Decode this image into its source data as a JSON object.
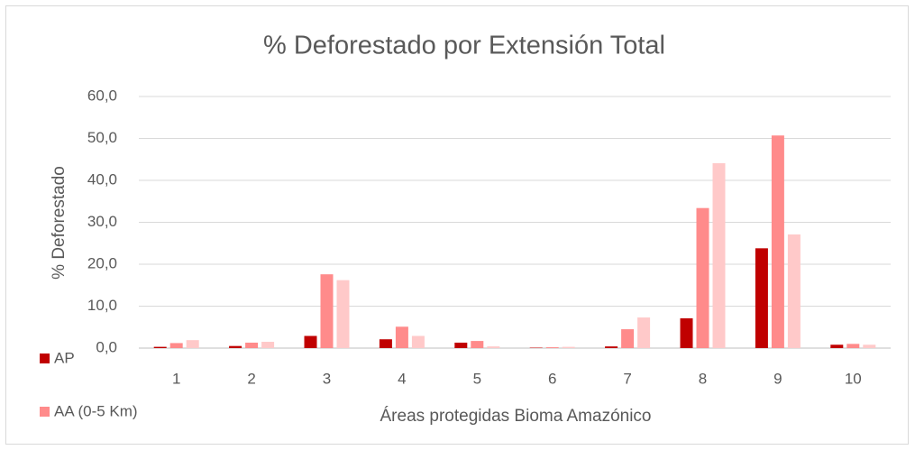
{
  "chart_data": {
    "type": "bar",
    "title": "% Deforestado por Extensión Total",
    "x_label": "Áreas protegidas Bioma Amazónico",
    "y_label": "% Deforestado",
    "categories": [
      "1",
      "2",
      "3",
      "4",
      "5",
      "6",
      "7",
      "8",
      "9",
      "10"
    ],
    "series": [
      {
        "name": "AP",
        "color": "#c00000",
        "values": [
          0.3,
          0.5,
          2.9,
          2.1,
          1.3,
          0.1,
          0.4,
          7.1,
          23.8,
          0.8
        ]
      },
      {
        "name": "AA (0-5 Km)",
        "color": "#ff8b8b",
        "values": [
          1.2,
          1.3,
          17.6,
          5.1,
          1.7,
          0.2,
          4.5,
          33.4,
          50.7,
          1.0
        ]
      },
      {
        "color": "#ffc9c9",
        "values": [
          1.9,
          1.5,
          16.2,
          2.9,
          0.4,
          0.3,
          7.3,
          44.1,
          27.1,
          0.8
        ]
      }
    ],
    "ylim": [
      0,
      60
    ],
    "yticks": [
      {
        "value": 0,
        "label": "0,0"
      },
      {
        "value": 10,
        "label": "10,0"
      },
      {
        "value": 20,
        "label": "20,0"
      },
      {
        "value": 30,
        "label": "30,0"
      },
      {
        "value": 40,
        "label": "40,0"
      },
      {
        "value": 50,
        "label": "50,0"
      },
      {
        "value": 60,
        "label": "60,0"
      }
    ],
    "grid": true,
    "legend": "bottom-left"
  }
}
